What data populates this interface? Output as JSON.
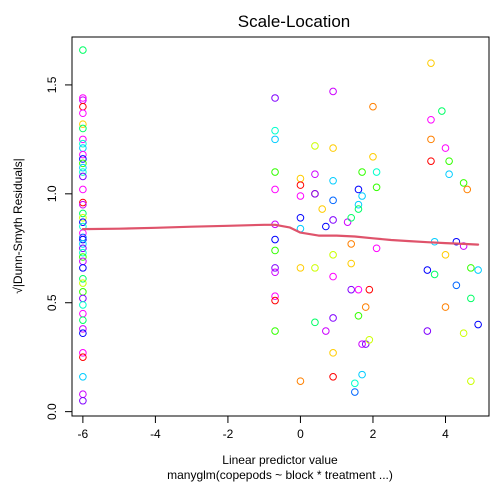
{
  "chart_data": {
    "type": "scatter",
    "title": "Scale-Location",
    "xlabel": "Linear predictor value",
    "subtitle": "manyglm(copepods ~ block * treatment ...)",
    "ylabel": "√|Dunn-Smyth Residuals|",
    "xlim": [
      -6.3,
      5.2
    ],
    "ylim": [
      -0.02,
      1.72
    ],
    "x_ticks": [
      -6,
      -4,
      -2,
      0,
      2,
      4
    ],
    "y_ticks": [
      0.0,
      0.5,
      1.0,
      1.5
    ],
    "x_tick_labels": [
      "-6",
      "-4",
      "-2",
      "0",
      "2",
      "4"
    ],
    "y_tick_labels": [
      "0.0",
      "0.5",
      "1.0",
      "1.5"
    ],
    "grid": false,
    "legend": "none",
    "point_palette": [
      "#ff0000",
      "#ff00ff",
      "#cc00ff",
      "#8000ff",
      "#0000ff",
      "#0066ff",
      "#00ccff",
      "#00ffcc",
      "#00ff66",
      "#33ff00",
      "#ccff00",
      "#ffcc00",
      "#ff8000"
    ],
    "points": [
      {
        "x": -6.0,
        "y": 1.66,
        "c": 8
      },
      {
        "x": -6.0,
        "y": 1.44,
        "c": 1
      },
      {
        "x": -6.0,
        "y": 1.43,
        "c": 2
      },
      {
        "x": -6.0,
        "y": 1.4,
        "c": 0
      },
      {
        "x": -6.0,
        "y": 1.37,
        "c": 1
      },
      {
        "x": -6.0,
        "y": 1.32,
        "c": 11
      },
      {
        "x": -6.0,
        "y": 1.3,
        "c": 8
      },
      {
        "x": -6.0,
        "y": 1.25,
        "c": 1
      },
      {
        "x": -6.0,
        "y": 1.23,
        "c": 7
      },
      {
        "x": -6.0,
        "y": 1.21,
        "c": 6
      },
      {
        "x": -6.0,
        "y": 1.18,
        "c": 1
      },
      {
        "x": -6.0,
        "y": 1.16,
        "c": 4
      },
      {
        "x": -6.0,
        "y": 1.14,
        "c": 9
      },
      {
        "x": -6.0,
        "y": 1.12,
        "c": 6
      },
      {
        "x": -6.0,
        "y": 1.1,
        "c": 7
      },
      {
        "x": -6.0,
        "y": 1.08,
        "c": 3
      },
      {
        "x": -6.0,
        "y": 1.02,
        "c": 1
      },
      {
        "x": -6.0,
        "y": 0.96,
        "c": 0
      },
      {
        "x": -6.0,
        "y": 0.95,
        "c": 2
      },
      {
        "x": -6.0,
        "y": 0.91,
        "c": 8
      },
      {
        "x": -6.0,
        "y": 0.89,
        "c": 10
      },
      {
        "x": -6.0,
        "y": 0.87,
        "c": 4
      },
      {
        "x": -6.0,
        "y": 0.85,
        "c": 7
      },
      {
        "x": -6.0,
        "y": 0.82,
        "c": 1
      },
      {
        "x": -6.0,
        "y": 0.8,
        "c": 5
      },
      {
        "x": -6.0,
        "y": 0.79,
        "c": 4
      },
      {
        "x": -6.0,
        "y": 0.77,
        "c": 6
      },
      {
        "x": -6.0,
        "y": 0.75,
        "c": 3
      },
      {
        "x": -6.0,
        "y": 0.73,
        "c": 7
      },
      {
        "x": -6.0,
        "y": 0.71,
        "c": 9
      },
      {
        "x": -6.0,
        "y": 0.69,
        "c": 2
      },
      {
        "x": -6.0,
        "y": 0.66,
        "c": 4
      },
      {
        "x": -6.0,
        "y": 0.61,
        "c": 8
      },
      {
        "x": -6.0,
        "y": 0.59,
        "c": 10
      },
      {
        "x": -6.0,
        "y": 0.55,
        "c": 9
      },
      {
        "x": -6.0,
        "y": 0.52,
        "c": 3
      },
      {
        "x": -6.0,
        "y": 0.49,
        "c": 7
      },
      {
        "x": -6.0,
        "y": 0.45,
        "c": 1
      },
      {
        "x": -6.0,
        "y": 0.42,
        "c": 8
      },
      {
        "x": -6.0,
        "y": 0.38,
        "c": 2
      },
      {
        "x": -6.0,
        "y": 0.36,
        "c": 4
      },
      {
        "x": -6.0,
        "y": 0.27,
        "c": 1
      },
      {
        "x": -6.0,
        "y": 0.25,
        "c": 0
      },
      {
        "x": -6.0,
        "y": 0.16,
        "c": 6
      },
      {
        "x": -6.0,
        "y": 0.08,
        "c": 2
      },
      {
        "x": -6.0,
        "y": 0.05,
        "c": 3
      },
      {
        "x": -0.7,
        "y": 1.44,
        "c": 3
      },
      {
        "x": -0.7,
        "y": 1.29,
        "c": 7
      },
      {
        "x": -0.7,
        "y": 1.25,
        "c": 6
      },
      {
        "x": -0.7,
        "y": 1.1,
        "c": 9
      },
      {
        "x": -0.7,
        "y": 1.02,
        "c": 1
      },
      {
        "x": -0.7,
        "y": 0.86,
        "c": 2
      },
      {
        "x": -0.7,
        "y": 0.79,
        "c": 4
      },
      {
        "x": -0.7,
        "y": 0.74,
        "c": 9
      },
      {
        "x": -0.7,
        "y": 0.66,
        "c": 3
      },
      {
        "x": -0.7,
        "y": 0.64,
        "c": 2
      },
      {
        "x": -0.7,
        "y": 0.53,
        "c": 1
      },
      {
        "x": -0.7,
        "y": 0.51,
        "c": 0
      },
      {
        "x": -0.7,
        "y": 0.37,
        "c": 9
      },
      {
        "x": 0.0,
        "y": 1.07,
        "c": 11
      },
      {
        "x": 0.0,
        "y": 1.04,
        "c": 0
      },
      {
        "x": 0.0,
        "y": 0.99,
        "c": 1
      },
      {
        "x": 0.0,
        "y": 0.89,
        "c": 4
      },
      {
        "x": 0.0,
        "y": 0.84,
        "c": 6
      },
      {
        "x": 0.0,
        "y": 0.66,
        "c": 11
      },
      {
        "x": 0.0,
        "y": 0.14,
        "c": 12
      },
      {
        "x": 0.4,
        "y": 1.22,
        "c": 10
      },
      {
        "x": 0.4,
        "y": 1.09,
        "c": 2
      },
      {
        "x": 0.4,
        "y": 1.0,
        "c": 12
      },
      {
        "x": 0.4,
        "y": 1.0,
        "c": 3
      },
      {
        "x": 0.4,
        "y": 0.66,
        "c": 10
      },
      {
        "x": 0.4,
        "y": 0.41,
        "c": 8
      },
      {
        "x": 0.6,
        "y": 0.93,
        "c": 11
      },
      {
        "x": 0.7,
        "y": 0.85,
        "c": 4
      },
      {
        "x": 0.7,
        "y": 0.37,
        "c": 2
      },
      {
        "x": 0.9,
        "y": 1.47,
        "c": 2
      },
      {
        "x": 0.9,
        "y": 1.21,
        "c": 11
      },
      {
        "x": 0.9,
        "y": 1.06,
        "c": 6
      },
      {
        "x": 0.9,
        "y": 0.97,
        "c": 5
      },
      {
        "x": 0.9,
        "y": 0.88,
        "c": 3
      },
      {
        "x": 0.9,
        "y": 0.72,
        "c": 10
      },
      {
        "x": 0.9,
        "y": 0.62,
        "c": 1
      },
      {
        "x": 0.9,
        "y": 0.43,
        "c": 3
      },
      {
        "x": 0.9,
        "y": 0.27,
        "c": 11
      },
      {
        "x": 0.9,
        "y": 0.16,
        "c": 0
      },
      {
        "x": 1.3,
        "y": 0.87,
        "c": 2
      },
      {
        "x": 1.4,
        "y": 0.89,
        "c": 8
      },
      {
        "x": 1.4,
        "y": 0.77,
        "c": 12
      },
      {
        "x": 1.4,
        "y": 0.68,
        "c": 11
      },
      {
        "x": 1.4,
        "y": 0.56,
        "c": 3
      },
      {
        "x": 1.5,
        "y": 0.13,
        "c": 7
      },
      {
        "x": 1.5,
        "y": 0.09,
        "c": 5
      },
      {
        "x": 1.6,
        "y": 1.02,
        "c": 4
      },
      {
        "x": 1.6,
        "y": 0.95,
        "c": 6
      },
      {
        "x": 1.6,
        "y": 0.93,
        "c": 8
      },
      {
        "x": 1.6,
        "y": 0.56,
        "c": 1
      },
      {
        "x": 1.6,
        "y": 0.44,
        "c": 9
      },
      {
        "x": 1.7,
        "y": 1.1,
        "c": 9
      },
      {
        "x": 1.7,
        "y": 0.99,
        "c": 6
      },
      {
        "x": 1.7,
        "y": 0.31,
        "c": 2
      },
      {
        "x": 1.7,
        "y": 0.17,
        "c": 6
      },
      {
        "x": 1.8,
        "y": 0.48,
        "c": 12
      },
      {
        "x": 1.8,
        "y": 0.31,
        "c": 3
      },
      {
        "x": 1.9,
        "y": 0.56,
        "c": 0
      },
      {
        "x": 1.9,
        "y": 0.33,
        "c": 10
      },
      {
        "x": 2.0,
        "y": 1.4,
        "c": 12
      },
      {
        "x": 2.0,
        "y": 1.17,
        "c": 11
      },
      {
        "x": 2.1,
        "y": 1.1,
        "c": 7
      },
      {
        "x": 2.1,
        "y": 1.03,
        "c": 9
      },
      {
        "x": 2.1,
        "y": 0.75,
        "c": 1
      },
      {
        "x": 3.5,
        "y": 0.65,
        "c": 4
      },
      {
        "x": 3.5,
        "y": 0.37,
        "c": 3
      },
      {
        "x": 3.6,
        "y": 1.6,
        "c": 11
      },
      {
        "x": 3.6,
        "y": 1.34,
        "c": 1
      },
      {
        "x": 3.6,
        "y": 1.25,
        "c": 12
      },
      {
        "x": 3.6,
        "y": 1.15,
        "c": 0
      },
      {
        "x": 3.7,
        "y": 0.78,
        "c": 6
      },
      {
        "x": 3.7,
        "y": 0.63,
        "c": 8
      },
      {
        "x": 3.9,
        "y": 1.38,
        "c": 8
      },
      {
        "x": 4.0,
        "y": 1.21,
        "c": 1
      },
      {
        "x": 4.0,
        "y": 0.72,
        "c": 11
      },
      {
        "x": 4.0,
        "y": 0.48,
        "c": 12
      },
      {
        "x": 4.1,
        "y": 1.15,
        "c": 9
      },
      {
        "x": 4.1,
        "y": 1.09,
        "c": 6
      },
      {
        "x": 4.3,
        "y": 0.78,
        "c": 4
      },
      {
        "x": 4.3,
        "y": 0.58,
        "c": 5
      },
      {
        "x": 4.5,
        "y": 1.05,
        "c": 9
      },
      {
        "x": 4.5,
        "y": 0.76,
        "c": 2
      },
      {
        "x": 4.5,
        "y": 0.36,
        "c": 10
      },
      {
        "x": 4.6,
        "y": 1.02,
        "c": 12
      },
      {
        "x": 4.7,
        "y": 0.66,
        "c": 9
      },
      {
        "x": 4.7,
        "y": 0.52,
        "c": 8
      },
      {
        "x": 4.7,
        "y": 0.14,
        "c": 10
      },
      {
        "x": 4.9,
        "y": 0.65,
        "c": 6
      },
      {
        "x": 4.9,
        "y": 0.4,
        "c": 4
      }
    ],
    "smoother": {
      "color": "#df536b",
      "x": [
        -6.0,
        -5.0,
        -4.0,
        -3.0,
        -2.0,
        -1.0,
        -0.7,
        -0.3,
        0.0,
        0.5,
        1.0,
        1.5,
        2.0,
        2.5,
        3.0,
        3.5,
        4.0,
        4.5,
        4.9
      ],
      "y": [
        0.838,
        0.84,
        0.844,
        0.849,
        0.853,
        0.858,
        0.858,
        0.846,
        0.822,
        0.808,
        0.808,
        0.804,
        0.796,
        0.788,
        0.783,
        0.778,
        0.774,
        0.77,
        0.767
      ]
    }
  }
}
